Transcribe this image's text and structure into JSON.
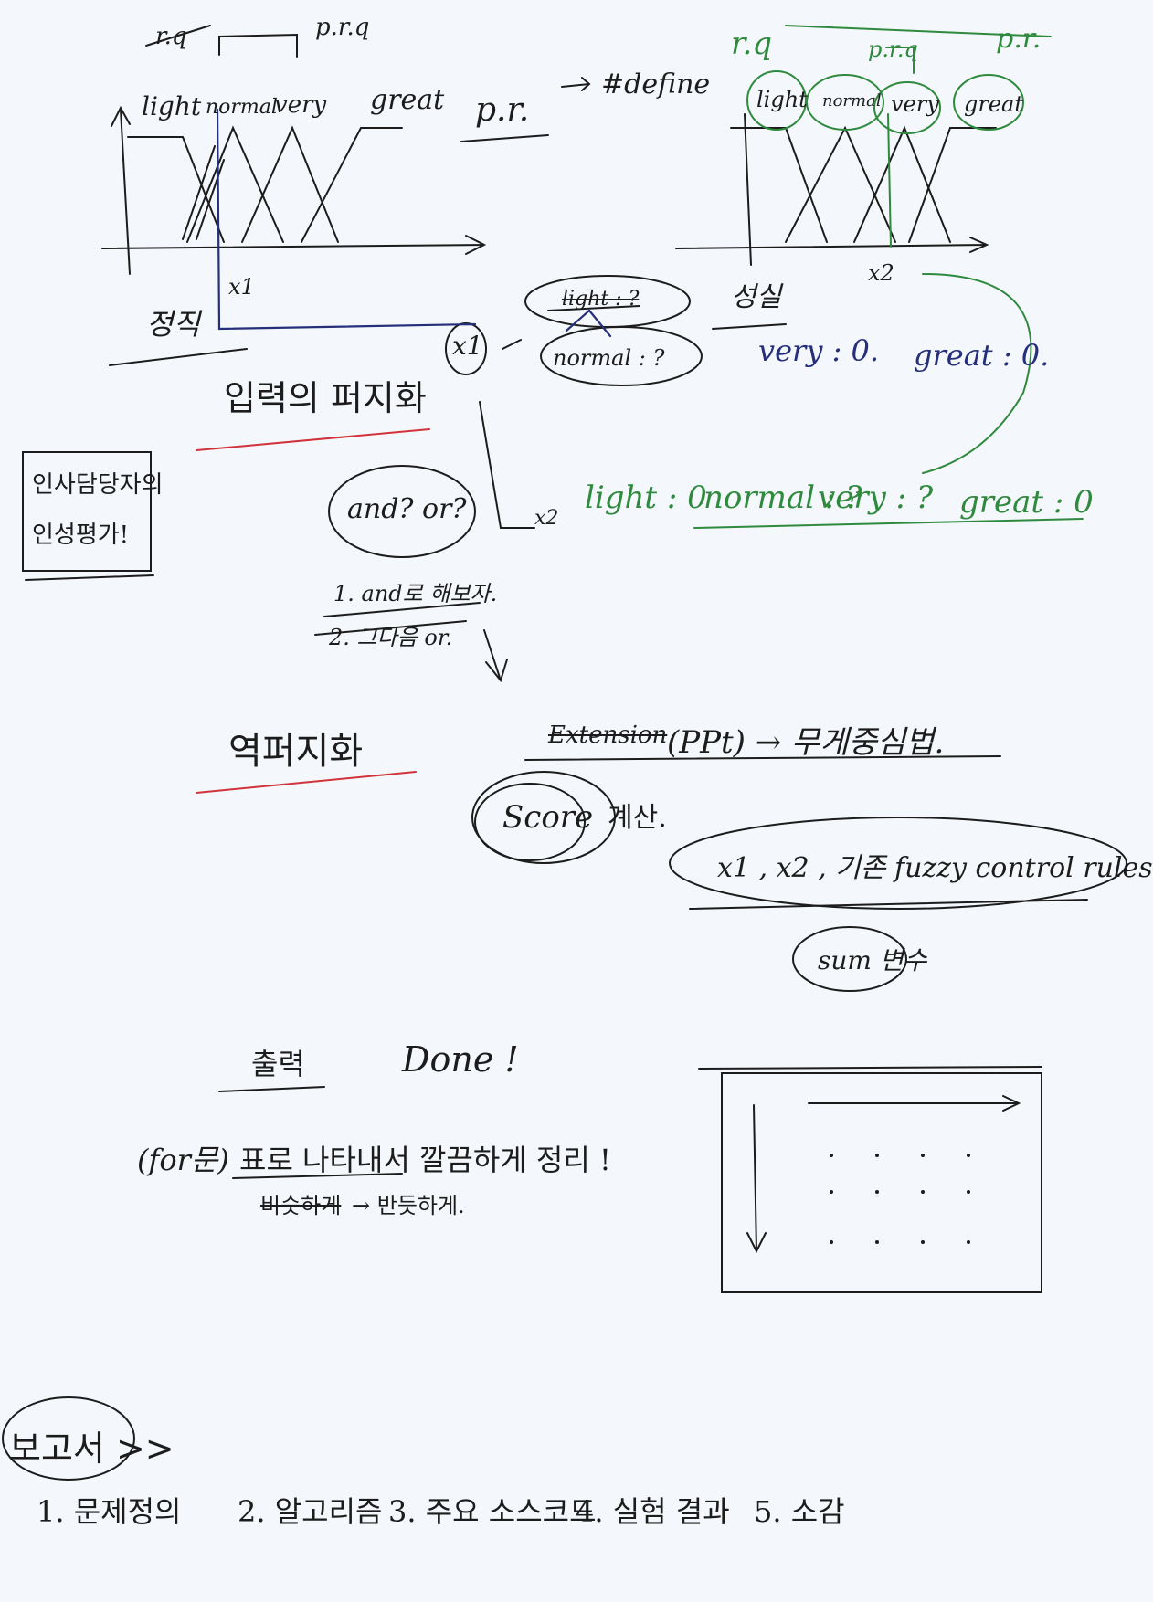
{
  "colors": {
    "ink": "#1c1c1c",
    "green": "#2f8a3e",
    "blue": "#26307a",
    "red": "#d0343a",
    "paper": "#f4f7fb"
  },
  "left_graph": {
    "top_labels": [
      "r.q",
      "p.r.q"
    ],
    "sets": [
      "light",
      "normal",
      "very",
      "great"
    ],
    "arrow_label": "p.r.",
    "input": "x1",
    "axis_label": "정직"
  },
  "define_label": "#define",
  "right_graph": {
    "top_labels": [
      "r.q",
      "p.r.q",
      "p.r."
    ],
    "sets": [
      "light",
      "normal",
      "very",
      "great"
    ],
    "input": "x2",
    "axis_label": "성실"
  },
  "x1_bubble": {
    "label": "x1",
    "items": [
      "light : ?",
      "normal : ?"
    ]
  },
  "x1_result": [
    "very : 0.",
    "great : 0."
  ],
  "x2_result": {
    "label": "x2",
    "items": [
      "light : 0",
      "normal : ?",
      "very : ?",
      "great : 0"
    ]
  },
  "fuzzify_title": "입력의 퍼지화",
  "side_note": [
    "인사담당자의",
    "인성평가!"
  ],
  "and_or": "and? or?",
  "steps": [
    "1. and로 해보자.",
    "2. 그다음 or."
  ],
  "defuzz_title": "역퍼지화",
  "extension": {
    "struck": "Extension",
    "text": "(PPt) → 무게중심법."
  },
  "score": {
    "label": "Score",
    "suffix": "계산."
  },
  "rules_note": "x1 , x2 , 기존 fuzzy control rules",
  "sum_var": "sum 변수",
  "output_label": "출력",
  "done_label": "Done !",
  "table_note": {
    "prefix": "(for문)",
    "text": "표로 나타내서 깔끔하게 정리 !"
  },
  "table_sub": {
    "struck": "비슷하게",
    "text": "→ 반듯하게."
  },
  "report": {
    "title": "보고서 >>",
    "items": [
      "1. 문제정의",
      "2. 알고리즘",
      "3. 주요 소스코드",
      "4. 실험 결과",
      "5. 소감"
    ]
  }
}
